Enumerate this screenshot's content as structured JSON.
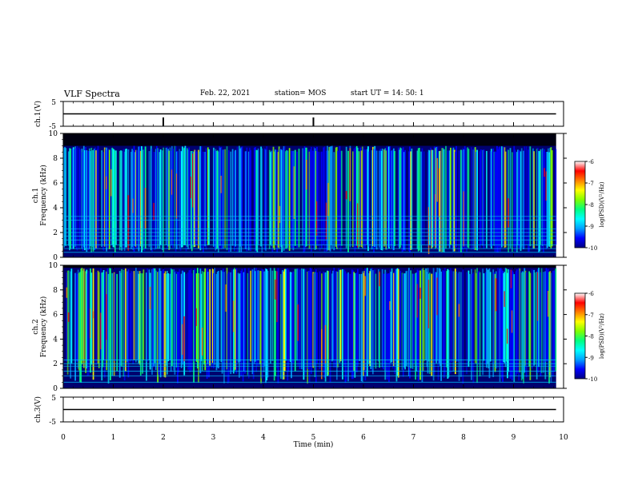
{
  "header": {
    "title": "VLF Spectra",
    "date": "Feb. 22, 2021",
    "station": "station= MOS",
    "start": "start  UT =   14: 50: 1"
  },
  "chart_data": [
    {
      "type": "line",
      "panel": "ch1-waveform",
      "ylabel": "ch.1(V)",
      "ylim": [
        -5,
        5
      ],
      "yticks": [
        "5",
        "-5"
      ],
      "xlim": [
        0,
        10
      ],
      "series": [
        {
          "values_description_free": true,
          "x": [
            0,
            9.85
          ],
          "values": [
            0,
            0
          ]
        }
      ]
    },
    {
      "type": "heatmap",
      "panel": "ch1-spectrogram",
      "ylabel": "ch.1\nFrequency (kHz)",
      "ylabel_line1": "ch.1",
      "ylabel_line2": "Frequency (kHz)",
      "ylim": [
        0,
        10
      ],
      "yticks": [
        "0",
        "2",
        "4",
        "6",
        "8",
        "10"
      ],
      "xlim": [
        0,
        10
      ],
      "data_xmax": 9.85,
      "signal_top_khz": 9.0,
      "colorbar": {
        "label": "log(PSD)(V²/Hz)",
        "range": [
          -10,
          -6
        ],
        "ticks": [
          "-6",
          "-7",
          "-8",
          "-9",
          "-10"
        ]
      }
    },
    {
      "type": "heatmap",
      "panel": "ch2-spectrogram",
      "ylabel": "ch.2\nFrequency (kHz)",
      "ylabel_line1": "ch.2",
      "ylabel_line2": "Frequency (kHz)",
      "ylim": [
        0,
        10
      ],
      "yticks": [
        "0",
        "2",
        "4",
        "6",
        "8",
        "10"
      ],
      "xlim": [
        0,
        10
      ],
      "data_xmax": 9.85,
      "signal_top_khz": 9.8,
      "colorbar": {
        "label": "log(PSD)(V²/Hz)",
        "range": [
          -10,
          -6
        ],
        "ticks": [
          "-6",
          "-7",
          "-8",
          "-9",
          "-10"
        ]
      }
    },
    {
      "type": "line",
      "panel": "ch3-waveform",
      "ylabel": "ch.3(V)",
      "ylim": [
        -5,
        5
      ],
      "yticks": [
        "5",
        "-5"
      ],
      "xlim": [
        0,
        10
      ],
      "xlabel": "Time  (min)",
      "xticks": [
        "0",
        "1",
        "2",
        "3",
        "4",
        "5",
        "6",
        "7",
        "8",
        "9",
        "10"
      ],
      "series": [
        {
          "x": [
            0,
            9.85
          ],
          "values": [
            0,
            0
          ]
        }
      ]
    }
  ],
  "colors": {
    "colormap": [
      "#000080",
      "#0000ff",
      "#00a0ff",
      "#00ffff",
      "#00ff80",
      "#80ff00",
      "#ffff00",
      "#ff8000",
      "#ff0000",
      "#ffffff"
    ],
    "axis": "#000000",
    "background": "#ffffff"
  }
}
